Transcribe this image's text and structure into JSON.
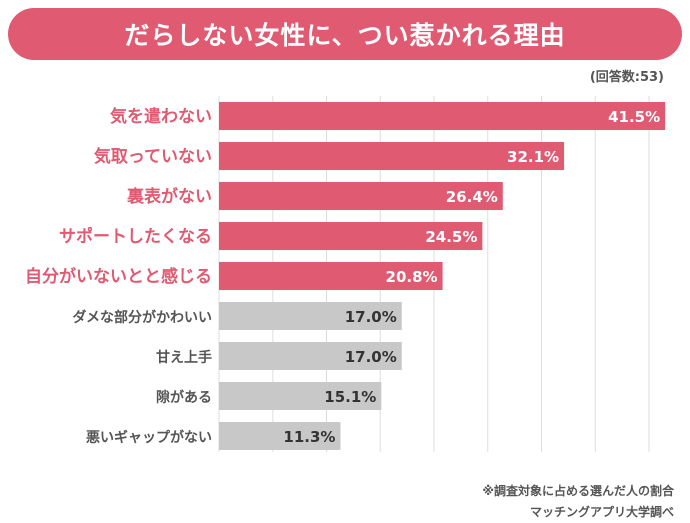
{
  "title": "だらしない女性に、つい惹かれる理由",
  "respondents_label": "(回答数:53)",
  "footnote": "※調査対象に占める選んだ人の割合",
  "source": "マッチングアプリ大学調べ",
  "colors": {
    "highlight": "#e05a72",
    "neutral": "#c8c8c8",
    "highlight_text": "#e05a72",
    "neutral_text": "#555555",
    "grid": "#dddddd"
  },
  "chart_data": {
    "type": "bar",
    "orientation": "horizontal",
    "unit": "%",
    "xlim": [
      0,
      50
    ],
    "categories": [
      "気を遣わない",
      "気取っていない",
      "裏表がない",
      "サポートしたくなる",
      "自分がいないとと感じる",
      "ダメな部分がかわいい",
      "甘え上手",
      "隙がある",
      "悪いギャップがない"
    ],
    "values": [
      41.5,
      32.1,
      26.4,
      24.5,
      20.8,
      17.0,
      17.0,
      15.1,
      11.3
    ],
    "value_labels": [
      "41.5%",
      "32.1%",
      "26.4%",
      "24.5%",
      "20.8%",
      "17.0%",
      "17.0%",
      "15.1%",
      "11.3%"
    ],
    "highlighted": [
      true,
      true,
      true,
      true,
      true,
      false,
      false,
      false,
      false
    ]
  }
}
